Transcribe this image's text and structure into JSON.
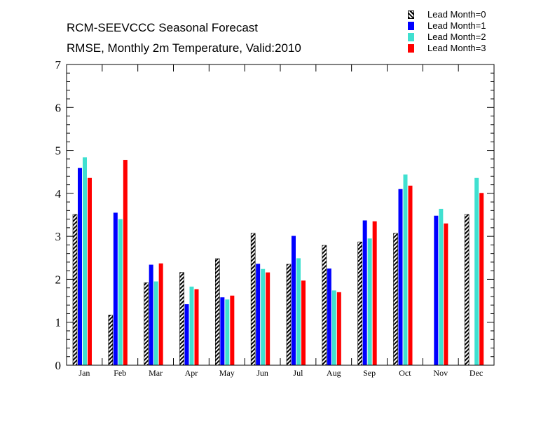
{
  "chart_data": {
    "type": "bar",
    "title": "RCM-SEEVCCC Seasonal Forecast",
    "subtitle": "RMSE, Monthly 2m Temperature, Valid:2010",
    "xlabel": "",
    "ylabel": "",
    "ylim": [
      0,
      7
    ],
    "yticks": [
      "0",
      "1",
      "2",
      "3",
      "4",
      "5",
      "6",
      "7"
    ],
    "legend_position": "top-right",
    "grid": false,
    "categories": [
      "Jan",
      "Feb",
      "Mar",
      "Apr",
      "May",
      "Jun",
      "Jul",
      "Aug",
      "Sep",
      "Oct",
      "Nov",
      "Dec"
    ],
    "series": [
      {
        "name": "Lead Month=0",
        "color": "#000000",
        "pattern": "hatch",
        "values": [
          3.51,
          1.17,
          1.92,
          2.16,
          2.48,
          3.07,
          2.35,
          2.79,
          2.87,
          3.07,
          null,
          3.51
        ]
      },
      {
        "name": "Lead Month=1",
        "color": "#0000ff",
        "pattern": "solid",
        "values": [
          4.59,
          3.55,
          2.34,
          1.42,
          1.58,
          2.36,
          3.01,
          2.25,
          3.37,
          4.1,
          3.48,
          null
        ]
      },
      {
        "name": "Lead Month=2",
        "color": "#40e0d0",
        "pattern": "solid",
        "values": [
          4.84,
          3.4,
          1.95,
          1.83,
          1.53,
          2.24,
          2.49,
          1.74,
          2.95,
          4.44,
          3.64,
          4.36
        ]
      },
      {
        "name": "Lead Month=3",
        "color": "#ff0000",
        "pattern": "solid",
        "values": [
          4.36,
          4.78,
          2.37,
          1.77,
          1.62,
          2.16,
          1.97,
          1.7,
          3.35,
          4.18,
          3.3,
          4.01
        ]
      }
    ]
  }
}
